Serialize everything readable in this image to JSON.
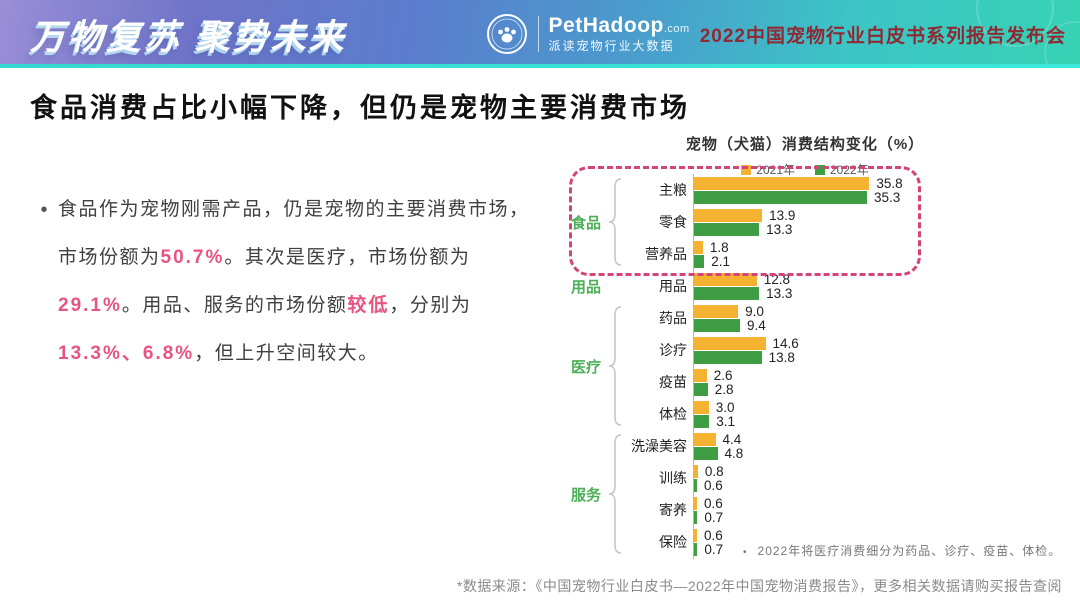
{
  "header": {
    "slogan": "万物复苏 聚势未来",
    "brand_main": "PetHadoop",
    "brand_suffix": ".com",
    "brand_sub": "派读宠物行业大数据",
    "event_title": "2022中国宠物行业白皮书系列报告发布会"
  },
  "page_title": "食品消费占比小幅下降，但仍是宠物主要消费市场",
  "body_text": {
    "bullet": "•",
    "segments": [
      {
        "text": "食品作为宠物刚需产品，仍是宠物的主要消费市场，市场份额为",
        "highlight": false
      },
      {
        "text": "50.7%",
        "highlight": true
      },
      {
        "text": "。其次是医疗，市场份额为",
        "highlight": false
      },
      {
        "text": "29.1%",
        "highlight": true
      },
      {
        "text": "。用品、服务的市场份额",
        "highlight": false
      },
      {
        "text": "较低",
        "highlight": true
      },
      {
        "text": "，分别为",
        "highlight": false
      },
      {
        "text": "13.3%、6.8%",
        "highlight": true
      },
      {
        "text": "，但上升空间较大。",
        "highlight": false
      }
    ]
  },
  "chart_data": {
    "type": "bar",
    "orientation": "horizontal",
    "title": "宠物（犬猫）消费结构变化（%）",
    "value_axis_max": 36,
    "legend": [
      {
        "label": "2021年",
        "color": "#f5b231"
      },
      {
        "label": "2022年",
        "color": "#3f9d44"
      }
    ],
    "series_names": [
      "2021年",
      "2022年"
    ],
    "groups": [
      {
        "name": "食品",
        "highlighted": true,
        "items": [
          {
            "label": "主粮",
            "v2021": 35.8,
            "v2022": 35.3
          },
          {
            "label": "零食",
            "v2021": 13.9,
            "v2022": 13.3
          },
          {
            "label": "营养品",
            "v2021": 1.8,
            "v2022": 2.1
          }
        ]
      },
      {
        "name": "用品",
        "highlighted": false,
        "items": [
          {
            "label": "用品",
            "v2021": 12.8,
            "v2022": 13.3
          }
        ]
      },
      {
        "name": "医疗",
        "highlighted": false,
        "items": [
          {
            "label": "药品",
            "v2021": 9.0,
            "v2022": 9.4
          },
          {
            "label": "诊疗",
            "v2021": 14.6,
            "v2022": 13.8
          },
          {
            "label": "疫苗",
            "v2021": 2.6,
            "v2022": 2.8
          },
          {
            "label": "体检",
            "v2021": 3.0,
            "v2022": 3.1
          }
        ]
      },
      {
        "name": "服务",
        "highlighted": false,
        "items": [
          {
            "label": "洗澡美容",
            "v2021": 4.4,
            "v2022": 4.8
          },
          {
            "label": "训练",
            "v2021": 0.8,
            "v2022": 0.6
          },
          {
            "label": "寄养",
            "v2021": 0.6,
            "v2022": 0.7
          },
          {
            "label": "保险",
            "v2021": 0.6,
            "v2022": 0.7
          }
        ]
      }
    ],
    "note_bullet": "•",
    "note": "2022年将医疗消费细分为药品、诊疗、疫苗、体检。"
  },
  "footer": "*数据来源：《中国宠物行业白皮书—2022年中国宠物消费报告》，更多相关数据请购买报告查阅",
  "colors": {
    "bar_2021": "#f5b231",
    "bar_2022": "#3f9d44",
    "group_label": "#4daf58",
    "highlight_text": "#e8537f",
    "highlight_box": "#d4437a",
    "event_title": "#8e2a33"
  }
}
